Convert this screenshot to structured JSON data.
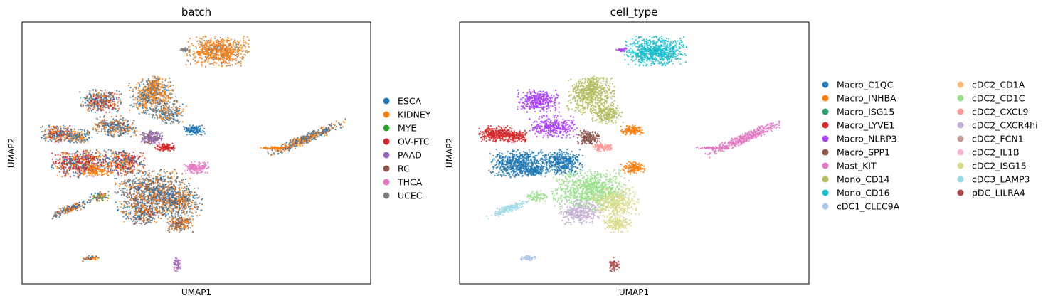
{
  "chart_data": [
    {
      "type": "scatter",
      "title": "batch",
      "xlabel": "UMAP1",
      "ylabel": "UMAP2",
      "grid": false,
      "ticks": false,
      "legend_position": "right",
      "legend": [
        {
          "name": "ESCA",
          "color": "#1f77b4"
        },
        {
          "name": "KIDNEY",
          "color": "#ff7f0e"
        },
        {
          "name": "MYE",
          "color": "#2ca02c"
        },
        {
          "name": "OV-FTC",
          "color": "#d62728"
        },
        {
          "name": "PAAD",
          "color": "#9467bd"
        },
        {
          "name": "RC",
          "color": "#8c564b"
        },
        {
          "name": "THCA",
          "color": "#e377c2"
        },
        {
          "name": "UCEC",
          "color": "#7f7f7f"
        }
      ]
    },
    {
      "type": "scatter",
      "title": "cell_type",
      "xlabel": "UMAP1",
      "ylabel": "UMAP2",
      "grid": false,
      "ticks": false,
      "legend_position": "right",
      "legend": [
        {
          "name": "Macro_C1QC",
          "color": "#1f77b4"
        },
        {
          "name": "Macro_INHBA",
          "color": "#ff7f0e"
        },
        {
          "name": "Macro_ISG15",
          "color": "#279e68"
        },
        {
          "name": "Macro_LYVE1",
          "color": "#d62728"
        },
        {
          "name": "Macro_NLRP3",
          "color": "#aa40fc"
        },
        {
          "name": "Macro_SPP1",
          "color": "#8c564b"
        },
        {
          "name": "Mast_KIT",
          "color": "#e377c2"
        },
        {
          "name": "Mono_CD14",
          "color": "#b5bd61"
        },
        {
          "name": "Mono_CD16",
          "color": "#17becf"
        },
        {
          "name": "cDC1_CLEC9A",
          "color": "#aec7e8"
        },
        {
          "name": "cDC2_CD1A",
          "color": "#ffbb78"
        },
        {
          "name": "cDC2_CD1C",
          "color": "#98df8a"
        },
        {
          "name": "cDC2_CXCL9",
          "color": "#ff9896"
        },
        {
          "name": "cDC2_CXCR4hi",
          "color": "#c5b0d5"
        },
        {
          "name": "cDC2_FCN1",
          "color": "#c49c94"
        },
        {
          "name": "cDC2_IL1B",
          "color": "#f7b6d2"
        },
        {
          "name": "cDC2_ISG15",
          "color": "#dbdb8d"
        },
        {
          "name": "cDC3_LAMP3",
          "color": "#9edae5"
        },
        {
          "name": "pDC_LILRA4",
          "color": "#ad494a"
        }
      ]
    }
  ]
}
